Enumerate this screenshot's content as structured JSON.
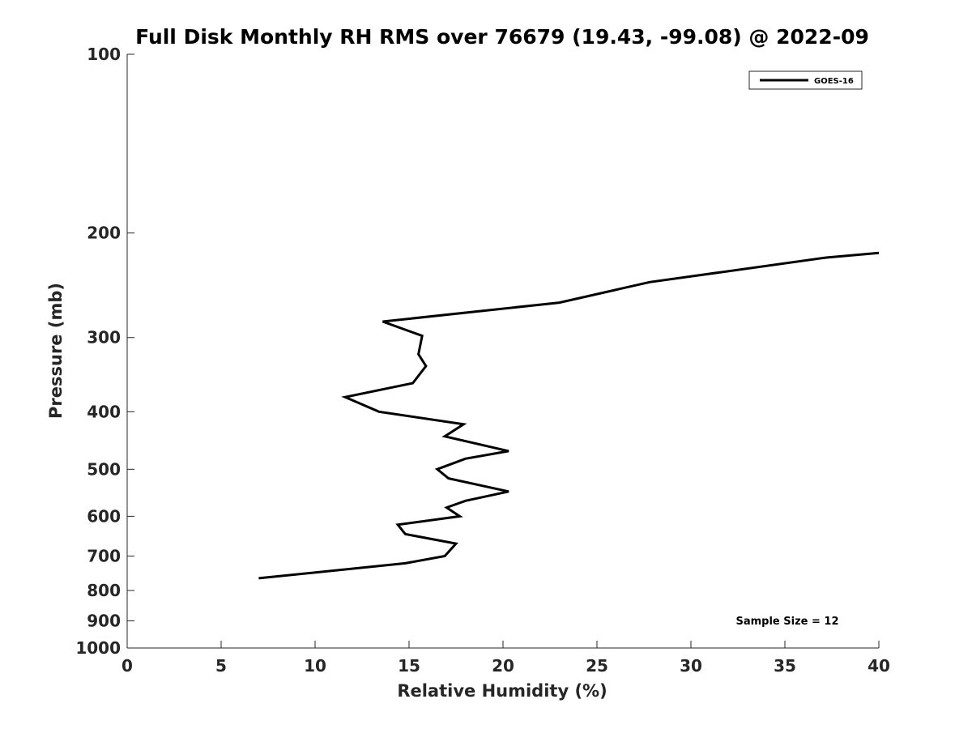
{
  "chart_data": {
    "type": "line",
    "title": "Full Disk Monthly RH RMS over 76679 (19.43, -99.08) @ 2022-09",
    "xlabel": "Relative Humidity (%)",
    "ylabel": "Pressure (mb)",
    "xlim": [
      0,
      40
    ],
    "ylim": [
      1000,
      100
    ],
    "y_scale": "log",
    "y_reversed": true,
    "grid": false,
    "x_ticks": [
      0,
      5,
      10,
      15,
      20,
      25,
      30,
      35,
      40
    ],
    "y_ticks": [
      100,
      200,
      300,
      400,
      500,
      600,
      700,
      800,
      900,
      1000
    ],
    "legend": {
      "position": "top-right",
      "entries": [
        "GOES-16"
      ]
    },
    "annotation": "Sample Size = 12",
    "colors": {
      "line": "#000000",
      "axis": "#262626"
    },
    "series": [
      {
        "name": "GOES-16",
        "points": [
          {
            "x": 40.0,
            "y": 216
          },
          {
            "x": 37.2,
            "y": 220
          },
          {
            "x": 27.8,
            "y": 242
          },
          {
            "x": 23.0,
            "y": 262
          },
          {
            "x": 13.6,
            "y": 282
          },
          {
            "x": 15.7,
            "y": 298
          },
          {
            "x": 15.5,
            "y": 320
          },
          {
            "x": 15.9,
            "y": 335
          },
          {
            "x": 15.2,
            "y": 358
          },
          {
            "x": 11.6,
            "y": 378
          },
          {
            "x": 13.4,
            "y": 400
          },
          {
            "x": 17.9,
            "y": 420
          },
          {
            "x": 16.9,
            "y": 440
          },
          {
            "x": 20.3,
            "y": 466
          },
          {
            "x": 18.0,
            "y": 480
          },
          {
            "x": 16.5,
            "y": 500
          },
          {
            "x": 17.1,
            "y": 518
          },
          {
            "x": 20.3,
            "y": 545
          },
          {
            "x": 18.0,
            "y": 565
          },
          {
            "x": 17.0,
            "y": 580
          },
          {
            "x": 17.7,
            "y": 600
          },
          {
            "x": 14.4,
            "y": 620
          },
          {
            "x": 14.8,
            "y": 643
          },
          {
            "x": 17.5,
            "y": 667
          },
          {
            "x": 16.9,
            "y": 700
          },
          {
            "x": 14.8,
            "y": 720
          },
          {
            "x": 7.0,
            "y": 763
          }
        ]
      }
    ]
  }
}
